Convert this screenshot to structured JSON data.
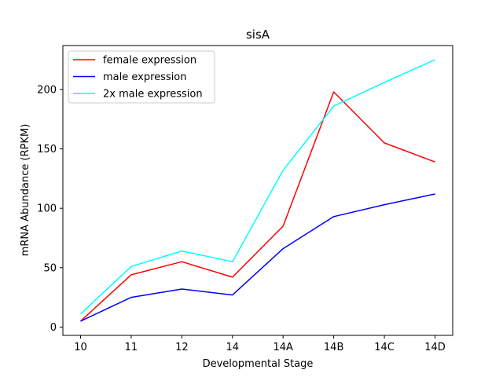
{
  "chart_data": {
    "type": "line",
    "title": "sisA",
    "xlabel": "Developmental Stage",
    "ylabel": "mRNA Abundance (RPKM)",
    "categories": [
      "10",
      "11",
      "12",
      "14",
      "14A",
      "14B",
      "14C",
      "14D"
    ],
    "ylim": [
      -7,
      237
    ],
    "yticks": [
      0,
      50,
      100,
      150,
      200
    ],
    "grid": false,
    "legend_position": "top-left",
    "series": [
      {
        "name": "female expression",
        "color": "#ff0000",
        "values": [
          5,
          44,
          55,
          42,
          85,
          198,
          155,
          139
        ]
      },
      {
        "name": "male expression",
        "color": "#0000ff",
        "values": [
          5,
          25,
          32,
          27,
          66,
          93,
          103,
          112
        ]
      },
      {
        "name": "2x male expression",
        "color": "#00ffff",
        "values": [
          11,
          51,
          64,
          55,
          132,
          186,
          206,
          225
        ]
      }
    ]
  }
}
